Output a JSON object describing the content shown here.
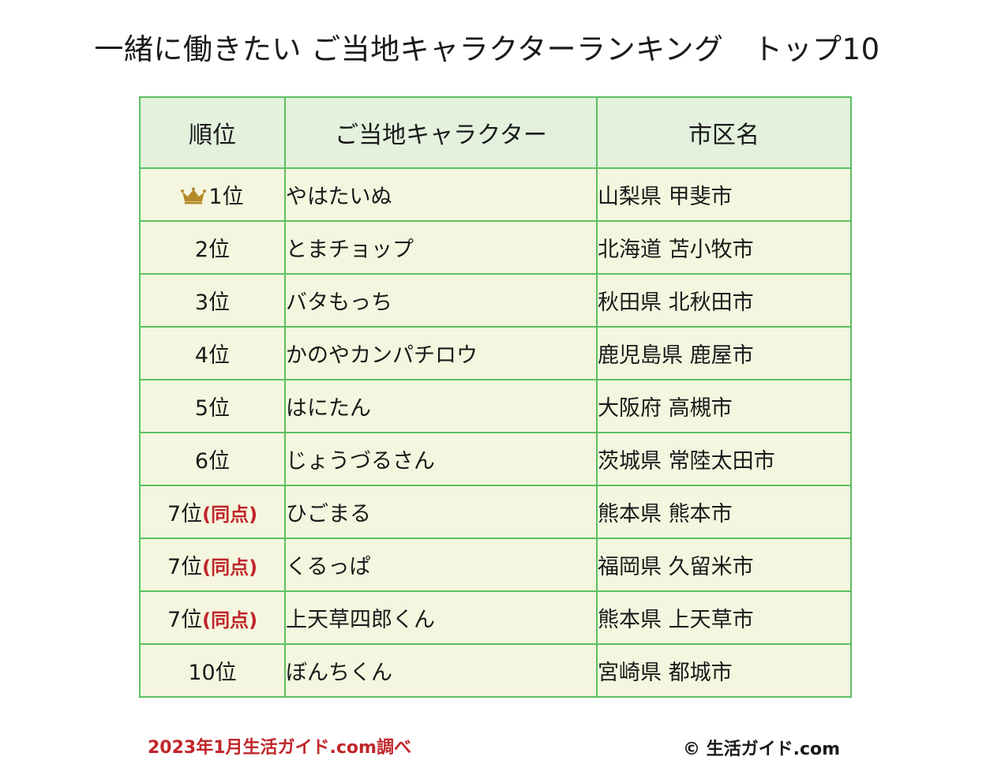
{
  "title": "一緒に働きたい ご当地キャラクターランキング　トップ10",
  "table": {
    "headers": [
      "順位",
      "ご当地キャラクター",
      "市区名"
    ],
    "rows": [
      {
        "rank": "1位",
        "tie": "",
        "character": "やはたいぬ",
        "city": "山梨県 甲斐市"
      },
      {
        "rank": "2位",
        "tie": "",
        "character": "とまチョップ",
        "city": "北海道 苫小牧市"
      },
      {
        "rank": "3位",
        "tie": "",
        "character": "バタもっち",
        "city": "秋田県 北秋田市"
      },
      {
        "rank": "4位",
        "tie": "",
        "character": "かのやカンパチロウ",
        "city": "鹿児島県 鹿屋市"
      },
      {
        "rank": "5位",
        "tie": "",
        "character": "はにたん",
        "city": "大阪府 高槻市"
      },
      {
        "rank": "6位",
        "tie": "",
        "character": "じょうづるさん",
        "city": "茨城県 常陸太田市"
      },
      {
        "rank": "7位",
        "tie": "(同点)",
        "character": "ひごまる",
        "city": "熊本県 熊本市"
      },
      {
        "rank": "7位",
        "tie": "(同点)",
        "character": "くるっぱ",
        "city": "福岡県 久留米市"
      },
      {
        "rank": "7位",
        "tie": "(同点)",
        "character": "上天草四郎くん",
        "city": "熊本県 上天草市"
      },
      {
        "rank": "10位",
        "tie": "",
        "character": "ぼんちくん",
        "city": "宮崎県 都城市"
      }
    ]
  },
  "footer": {
    "source": "2023年1月生活ガイド.com調べ",
    "copyright": "© 生活ガイド.com"
  },
  "icons": {
    "first_place": "crown-icon"
  },
  "colors": {
    "border": "#5cbf63",
    "header_bg": "#e3f1dd",
    "row_bg": "#f5f6df",
    "accent_red": "#c0262b",
    "crown": "#b58a2a"
  }
}
